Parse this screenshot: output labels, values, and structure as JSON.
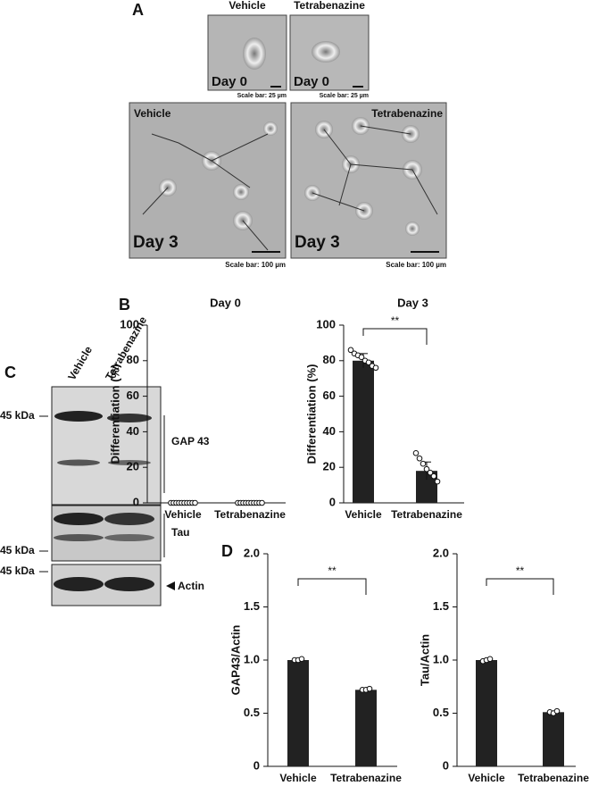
{
  "panels": {
    "a": "A",
    "b": "B",
    "c": "C",
    "d": "D"
  },
  "micrographs": [
    {
      "header": "Vehicle",
      "day": "Day 0",
      "scale": "Scale bar: 25 µm"
    },
    {
      "header": "Tetrabenazine",
      "day": "Day 0",
      "scale": "Scale bar: 25 µm"
    },
    {
      "header": "Vehicle",
      "day": "Day 3",
      "scale": "Scale bar: 100 µm"
    },
    {
      "header": "Tetrabenazine",
      "day": "Day 3",
      "scale": "Scale bar: 100 µm"
    }
  ],
  "blot": {
    "lanes": [
      "Vehicle",
      "Tetrabenazine"
    ],
    "markers": [
      "45 kDa",
      "45 kDa",
      "45 kDa"
    ],
    "bands": [
      "GAP 43",
      "Tau",
      "Actin"
    ]
  },
  "chart_data": [
    {
      "type": "bar",
      "title": "Day 0",
      "y_label": "Differentiation (%)",
      "categories": [
        "Vehicle",
        "Tetrabenazine"
      ],
      "values": [
        0,
        0
      ],
      "points": [
        [
          0,
          0,
          0,
          0,
          0,
          0,
          0,
          0,
          0,
          0
        ],
        [
          0,
          0,
          0,
          0,
          0,
          0,
          0,
          0,
          0,
          0
        ]
      ],
      "ylim": [
        0,
        100
      ],
      "yticks": [
        0,
        20,
        40,
        60,
        80,
        100
      ],
      "color": "#222222"
    },
    {
      "type": "bar",
      "title": "Day 3",
      "y_label": "Differentiation (%)",
      "categories": [
        "Vehicle",
        "Tetrabenazine"
      ],
      "values": [
        80,
        18
      ],
      "errors": [
        4,
        5
      ],
      "points": [
        [
          86,
          84,
          83,
          82,
          80,
          79,
          77,
          76
        ],
        [
          28,
          25,
          22,
          19,
          17,
          15,
          12
        ]
      ],
      "annotation": "**",
      "ylim": [
        0,
        100
      ],
      "yticks": [
        0,
        20,
        40,
        60,
        80,
        100
      ],
      "color": "#222222"
    },
    {
      "type": "bar",
      "y_label": "GAP43/Actin",
      "categories": [
        "Vehicle",
        "Tetrabenazine"
      ],
      "values": [
        1.0,
        0.72
      ],
      "points": [
        [
          1.0,
          1.0,
          1.01
        ],
        [
          0.72,
          0.72,
          0.73
        ]
      ],
      "annotation": "**",
      "ylim": [
        0,
        2
      ],
      "yticks": [
        0,
        0.5,
        {
          "value": 1,
          "label": "1.0"
        },
        1.5,
        {
          "value": 2,
          "label": "2.0"
        }
      ],
      "color": "#222222"
    },
    {
      "type": "bar",
      "y_label": "Tau/Actin",
      "categories": [
        "Vehicle",
        "Tetrabenazine"
      ],
      "values": [
        1.0,
        0.51
      ],
      "points": [
        [
          0.99,
          1.0,
          1.01
        ],
        [
          0.51,
          0.5,
          0.52
        ]
      ],
      "annotation": "**",
      "ylim": [
        0,
        2
      ],
      "yticks": [
        0,
        0.5,
        {
          "value": 1,
          "label": "1.0"
        },
        1.5,
        {
          "value": 2,
          "label": "2.0"
        }
      ],
      "color": "#222222"
    }
  ]
}
